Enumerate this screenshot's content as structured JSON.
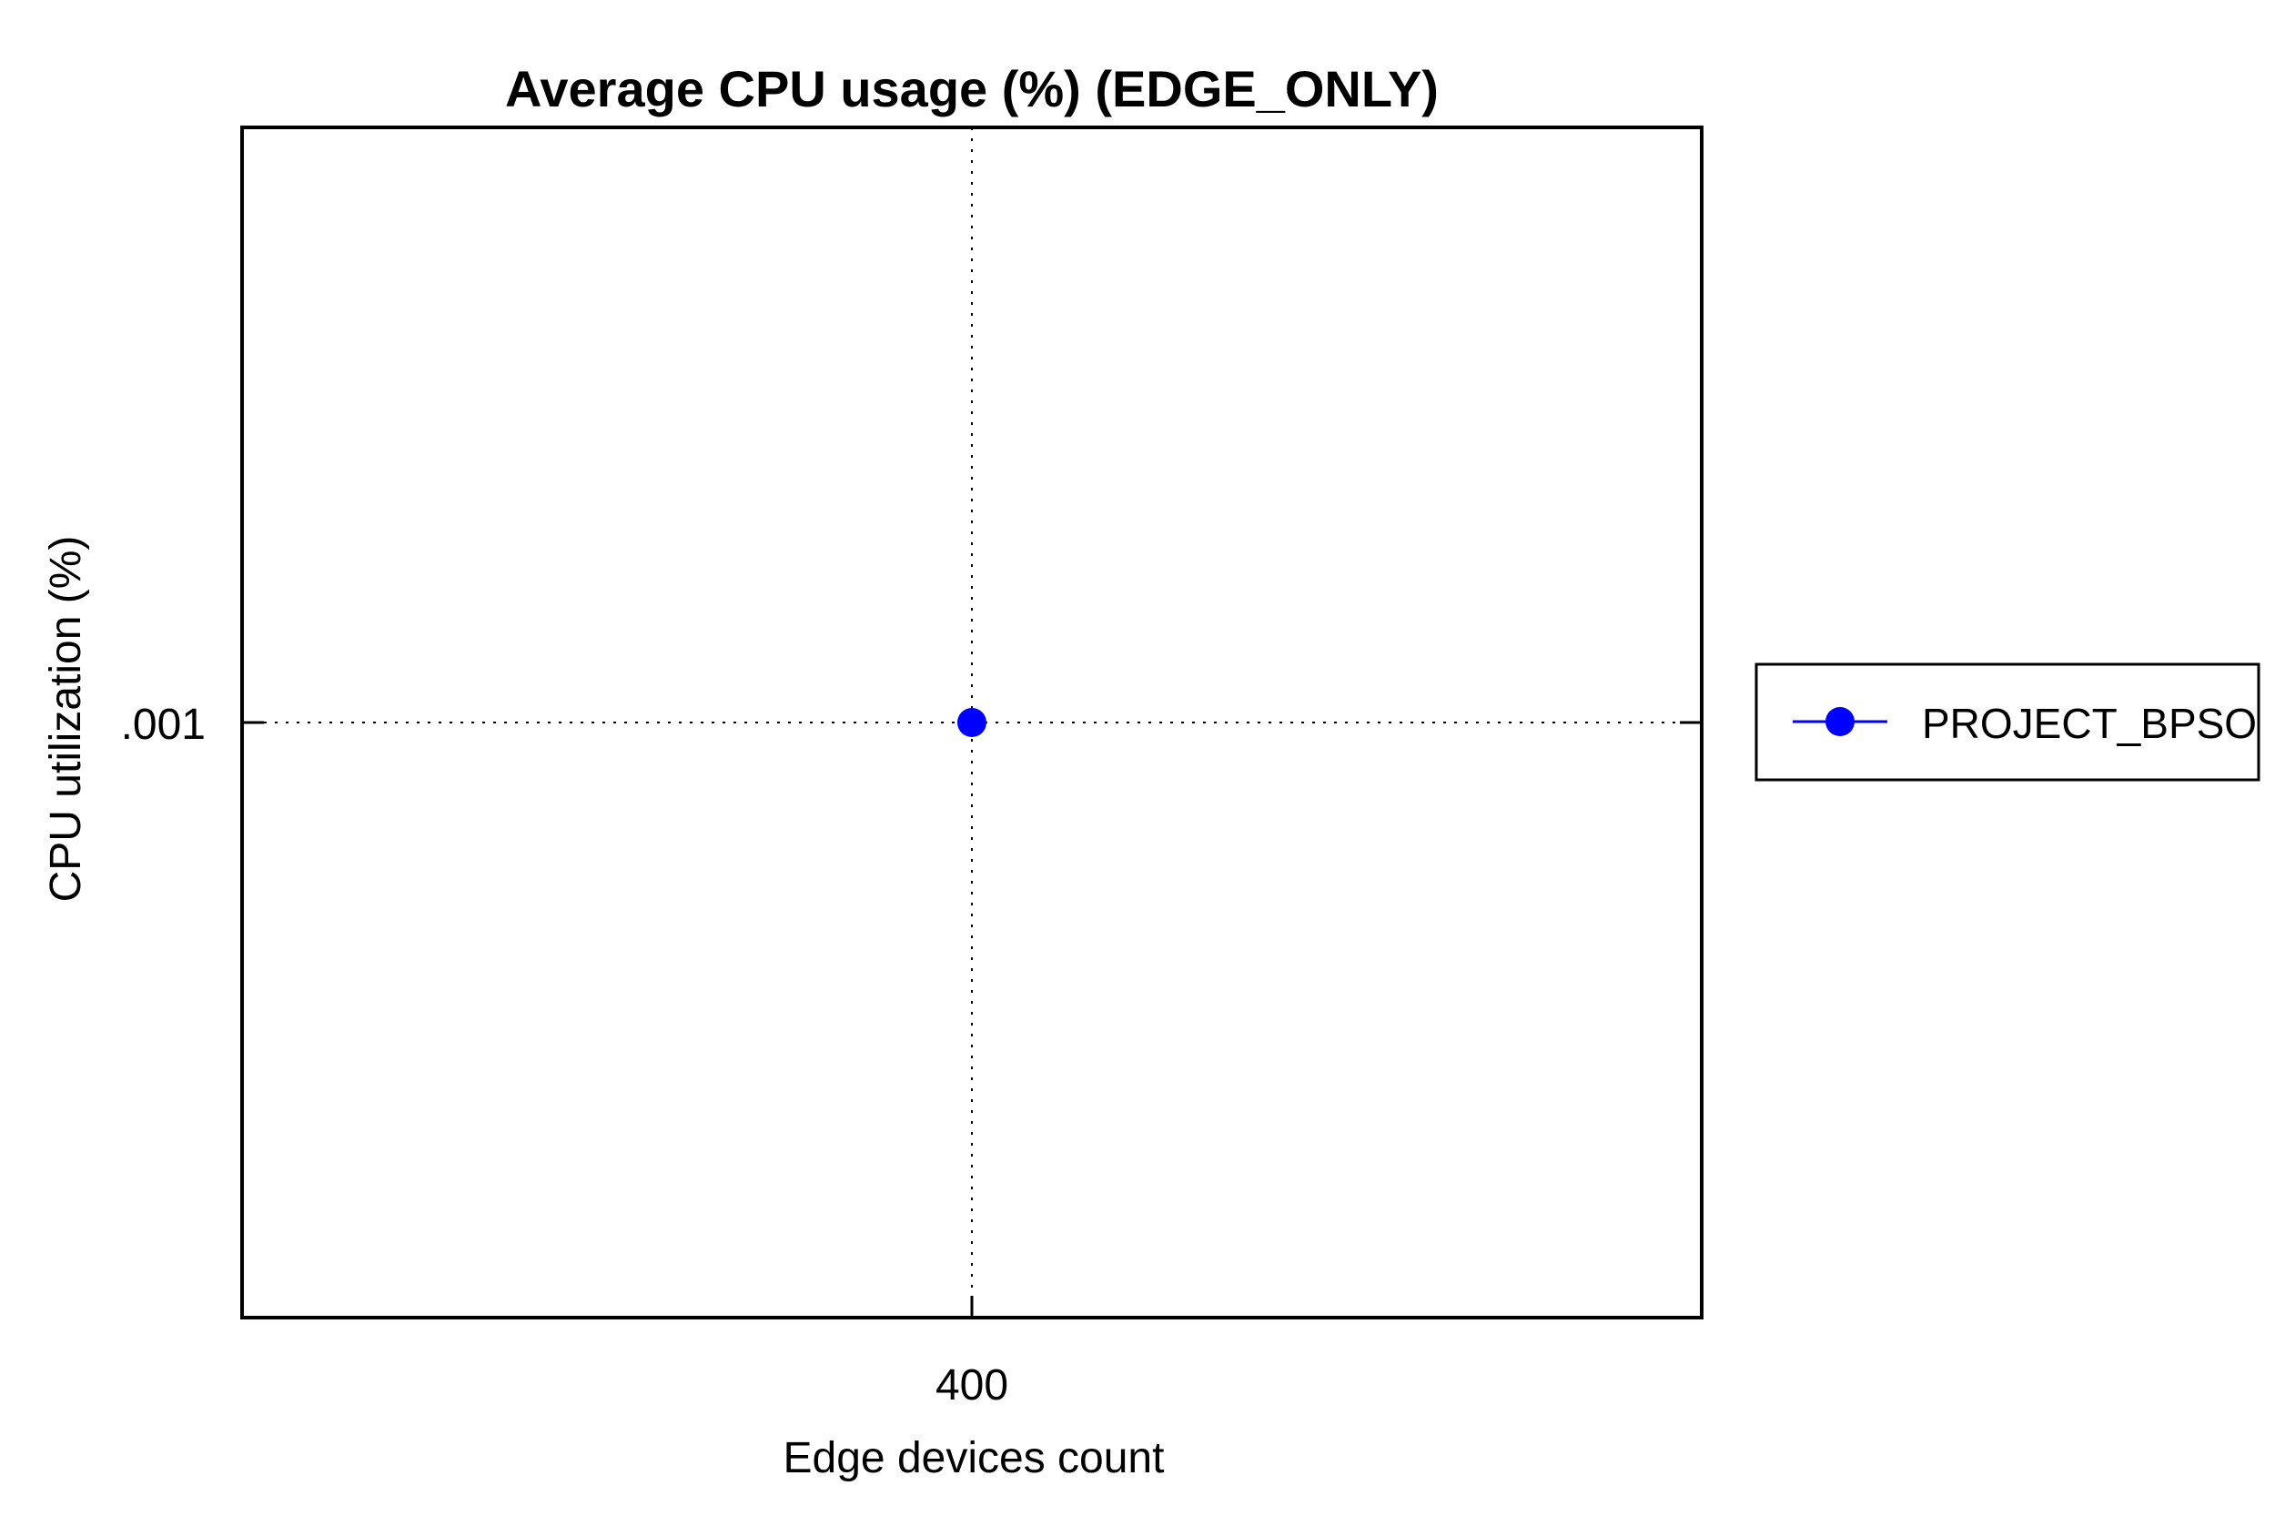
{
  "chart_data": {
    "type": "line",
    "title": "Average CPU usage (%) (EDGE_ONLY)",
    "xlabel": "Edge devices count",
    "ylabel": "CPU utilization (%)",
    "x_ticks": [
      "400"
    ],
    "y_ticks": [
      ".001"
    ],
    "grid": true,
    "legend_position": "right",
    "series": [
      {
        "name": "PROJECT_BPSO",
        "color": "#0000ff",
        "marker": "circle",
        "x": [
          400
        ],
        "y": [
          0.001
        ]
      }
    ]
  }
}
